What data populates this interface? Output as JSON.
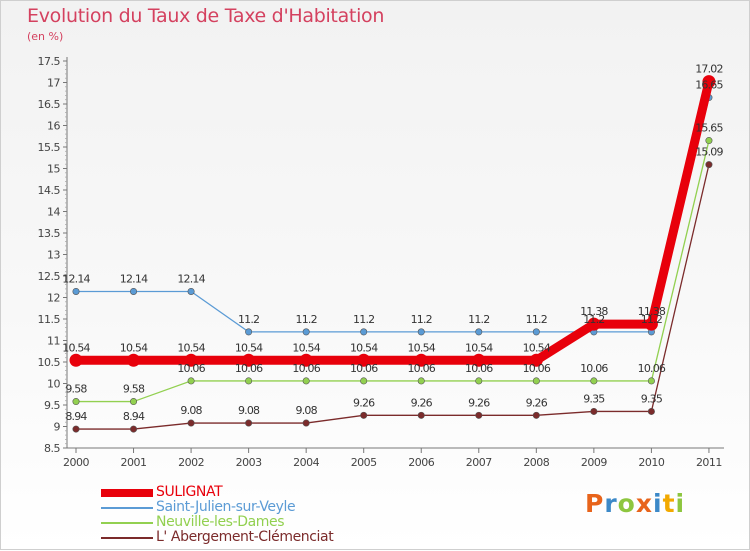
{
  "chart_data": {
    "type": "line",
    "title": "Evolution du Taux de Taxe d'Habitation",
    "subtitle": "(en %)",
    "categories": [
      "2000",
      "2001",
      "2002",
      "2003",
      "2004",
      "2005",
      "2006",
      "2007",
      "2008",
      "2009",
      "2010",
      "2011"
    ],
    "ylim": [
      8.5,
      17.5
    ],
    "yticks": [
      "8.5",
      "9",
      "9.5",
      "10",
      "10.5",
      "11",
      "11.5",
      "12",
      "12.5",
      "13",
      "13.5",
      "14",
      "14.5",
      "15",
      "15.5",
      "16",
      "16.5",
      "17",
      "17.5"
    ],
    "series": [
      {
        "name": "SULIGNAT",
        "color": "#e8000b",
        "values": [
          10.54,
          10.54,
          10.54,
          10.54,
          10.54,
          10.54,
          10.54,
          10.54,
          10.54,
          11.38,
          11.38,
          17.02
        ],
        "labels": [
          "10.54",
          "10.54",
          "10.54",
          "10.54",
          "10.54",
          "10.54",
          "10.54",
          "10.54",
          "10.54",
          "11.38",
          "11.38",
          "17.02"
        ]
      },
      {
        "name": "Saint-Julien-sur-Veyle",
        "color": "#5b9bd5",
        "values": [
          12.14,
          12.14,
          12.14,
          11.2,
          11.2,
          11.2,
          11.2,
          11.2,
          11.2,
          11.2,
          11.2,
          16.65
        ],
        "labels": [
          "12.14",
          "12.14",
          "12.14",
          "11.2",
          "11.2",
          "11.2",
          "11.2",
          "11.2",
          "11.2",
          "11.2",
          "11.2",
          "16.65"
        ]
      },
      {
        "name": "Neuville-les-Dames",
        "color": "#92d050",
        "values": [
          9.58,
          9.58,
          10.06,
          10.06,
          10.06,
          10.06,
          10.06,
          10.06,
          10.06,
          10.06,
          10.06,
          15.65
        ],
        "labels": [
          "9.58",
          "9.58",
          "10.06",
          "10.06",
          "10.06",
          "10.06",
          "10.06",
          "10.06",
          "10.06",
          "10.06",
          "10.06",
          "15.65"
        ]
      },
      {
        "name": "L' Abergement-Clémenciat",
        "color": "#7b2b2b",
        "values": [
          8.94,
          8.94,
          9.08,
          9.08,
          9.08,
          9.26,
          9.26,
          9.26,
          9.26,
          9.35,
          9.35,
          15.09
        ],
        "labels": [
          "8.94",
          "8.94",
          "9.08",
          "9.08",
          "9.08",
          "9.26",
          "9.26",
          "9.26",
          "9.26",
          "9.35",
          "9.35",
          "15.09"
        ]
      }
    ]
  },
  "brand": {
    "letters": [
      {
        "char": "P",
        "color": "#e8641b"
      },
      {
        "char": "r",
        "color": "#3c89c8"
      },
      {
        "char": "o",
        "color": "#8dc63f"
      },
      {
        "char": "x",
        "color": "#e8641b"
      },
      {
        "char": "i",
        "color": "#3c89c8"
      },
      {
        "char": "t",
        "color": "#f2a900"
      },
      {
        "char": "i",
        "color": "#8dc63f"
      }
    ]
  }
}
